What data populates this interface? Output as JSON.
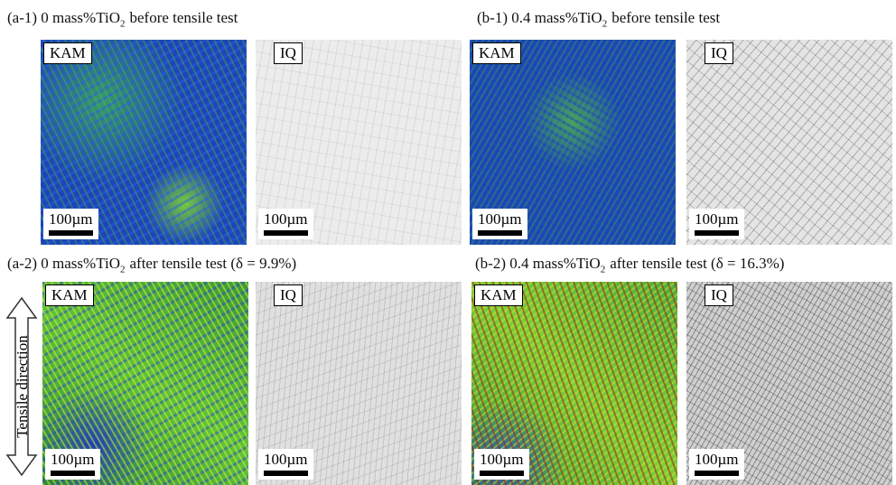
{
  "panels": [
    {
      "caption": {
        "main": "(a-1) 0 mass%TiO",
        "sub": "2",
        "rest": "before tensile test"
      },
      "images": [
        {
          "label": "KAM",
          "scale_bar": "100µm"
        },
        {
          "label": "IQ",
          "scale_bar": "100µm"
        }
      ]
    },
    {
      "caption": {
        "main": "(b-1) 0.4 mass%TiO",
        "sub": "2",
        "rest": "before tensile test"
      },
      "images": [
        {
          "label": "KAM",
          "scale_bar": "100µm"
        },
        {
          "label": "IQ",
          "scale_bar": "100µm"
        }
      ]
    },
    {
      "caption": {
        "main": "(a-2) 0 mass%TiO",
        "sub": "2",
        "rest": "after tensile test (δ = 9.9%)"
      },
      "images": [
        {
          "label": "KAM",
          "scale_bar": "100µm"
        },
        {
          "label": "IQ",
          "scale_bar": "100µm"
        }
      ]
    },
    {
      "caption": {
        "main": "(b-2) 0.4 mass%TiO",
        "sub": "2",
        "rest": "after tensile test (δ = 16.3%)"
      },
      "images": [
        {
          "label": "KAM",
          "scale_bar": "100µm"
        },
        {
          "label": "IQ",
          "scale_bar": "100µm"
        }
      ]
    }
  ],
  "arrow_label": "Tensile direction"
}
